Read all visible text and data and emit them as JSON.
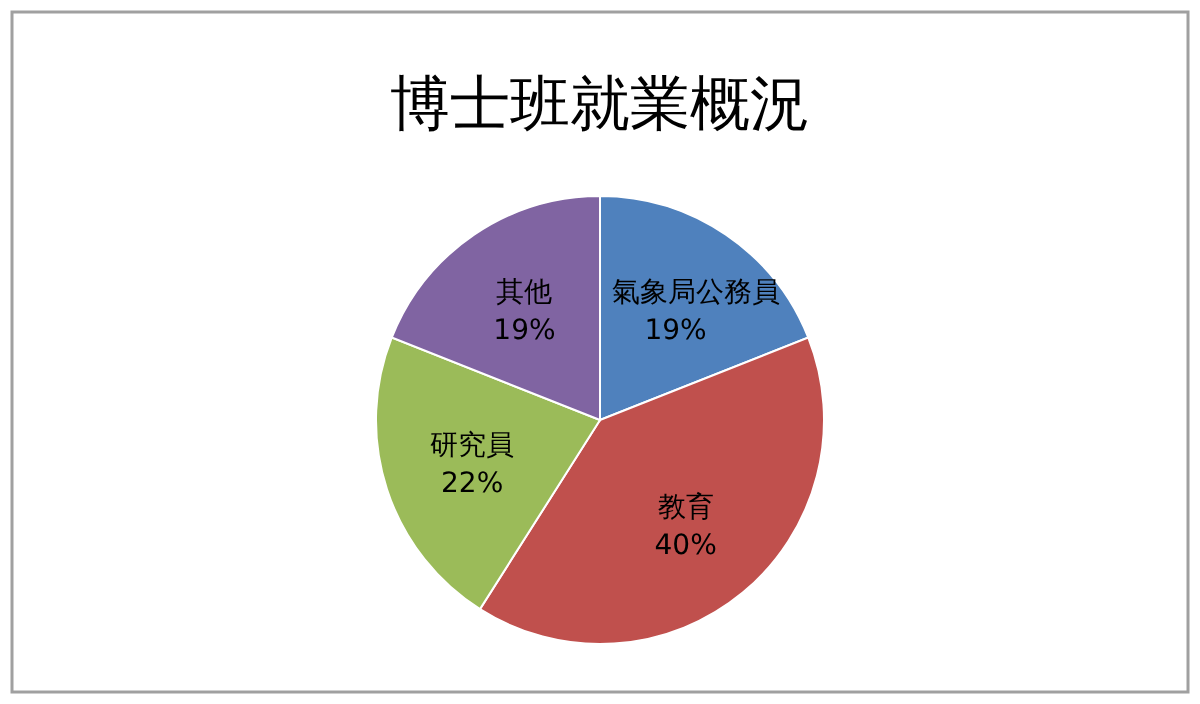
{
  "chart_data": {
    "type": "pie",
    "title": "博士班就業概況",
    "categories": [
      "氣象局公務員",
      "教育",
      "研究員",
      "其他"
    ],
    "values": [
      19,
      40,
      22,
      19
    ],
    "colors": [
      "#4f81bd",
      "#c0504d",
      "#9bbb59",
      "#8064a2"
    ],
    "value_labels": [
      "19%",
      "40%",
      "22%",
      "19%"
    ]
  }
}
